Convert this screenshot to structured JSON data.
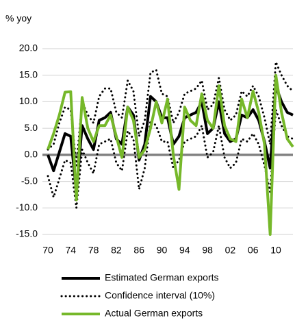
{
  "chart_data": {
    "type": "line",
    "y_label": "% yoy",
    "x": [
      1970,
      1971,
      1972,
      1973,
      1974,
      1975,
      1976,
      1977,
      1978,
      1979,
      1980,
      1981,
      1982,
      1983,
      1984,
      1985,
      1986,
      1987,
      1988,
      1989,
      1990,
      1991,
      1992,
      1993,
      1994,
      1995,
      1996,
      1997,
      1998,
      1999,
      2000,
      2001,
      2002,
      2003,
      2004,
      2005,
      2006,
      2007,
      2008,
      2009,
      2010,
      2011,
      2012,
      2013
    ],
    "xlim": [
      1970,
      2013
    ],
    "xticks": [
      {
        "value": 1970,
        "label": "70"
      },
      {
        "value": 1974,
        "label": "74"
      },
      {
        "value": 1978,
        "label": "78"
      },
      {
        "value": 1982,
        "label": "82"
      },
      {
        "value": 1986,
        "label": "86"
      },
      {
        "value": 1990,
        "label": "90"
      },
      {
        "value": 1994,
        "label": "94"
      },
      {
        "value": 1998,
        "label": "98"
      },
      {
        "value": 2002,
        "label": "02"
      },
      {
        "value": 2006,
        "label": "06"
      },
      {
        "value": 2010,
        "label": "10"
      }
    ],
    "ylim": [
      -15,
      20
    ],
    "yticks": [
      {
        "value": -15,
        "label": "-15.0"
      },
      {
        "value": -10,
        "label": "-10.0"
      },
      {
        "value": -5,
        "label": "-5.0"
      },
      {
        "value": 0,
        "label": "0.0"
      },
      {
        "value": 5,
        "label": "5.0"
      },
      {
        "value": 10,
        "label": "10.0"
      },
      {
        "value": 15,
        "label": "15.0"
      },
      {
        "value": 20,
        "label": "20.0"
      }
    ],
    "grid": true,
    "series": [
      {
        "name": "Estimated German exports",
        "color": "#000000",
        "style": "solid",
        "values": [
          0,
          -3,
          0.5,
          4,
          3.5,
          -7,
          5.5,
          3,
          1,
          6.5,
          7,
          8,
          3,
          2,
          9,
          7.5,
          -1,
          2,
          11,
          10,
          7,
          7,
          2,
          3.5,
          7,
          7.5,
          8,
          10,
          4,
          5,
          10,
          4,
          2.5,
          3,
          7.5,
          7,
          8.5,
          6.5,
          2.5,
          -2.5,
          13,
          10,
          8,
          7.5
        ]
      },
      {
        "name": "Confidence interval (10%)",
        "color": "#000000",
        "style": "dotted",
        "upper": [
          1,
          2,
          6,
          9,
          8.5,
          -2,
          10,
          7.5,
          6,
          11,
          12.5,
          12.5,
          8,
          7,
          14,
          12,
          3.5,
          6.5,
          15.5,
          16,
          11.5,
          11,
          6,
          8,
          11.5,
          12,
          12.5,
          14,
          8.5,
          9.5,
          14.5,
          8.5,
          6.5,
          7.5,
          12,
          11,
          13,
          11,
          7,
          2,
          17.5,
          15,
          13,
          12
        ],
        "lower": [
          -4,
          -8,
          -4.5,
          -1,
          -1.5,
          -10,
          1,
          -1.5,
          -3.5,
          2,
          2.5,
          3,
          -1.5,
          -3,
          4.5,
          3,
          -6.5,
          -2.5,
          6.5,
          5.5,
          2.5,
          2.5,
          -2.5,
          -1,
          2.5,
          3,
          3.5,
          5.5,
          -0.5,
          0.5,
          5.5,
          -0.5,
          -2.5,
          -1.5,
          3,
          2.5,
          4,
          2,
          -2,
          -7,
          8.5,
          5.5,
          3.5,
          3
        ]
      },
      {
        "name": "Actual German exports",
        "color": "#76b82a",
        "style": "solid",
        "values": [
          1,
          4,
          7.5,
          11.8,
          11.9,
          -8.5,
          10.8,
          5,
          2.5,
          5.5,
          5.5,
          7.5,
          3.5,
          -0.5,
          9,
          6.5,
          -0.5,
          1,
          5,
          10,
          6,
          10.5,
          0,
          -6.5,
          9,
          6.5,
          5.5,
          11.5,
          6.5,
          5,
          13,
          5.5,
          3,
          2.5,
          10.5,
          7,
          12,
          8,
          2,
          -15,
          15,
          8,
          3,
          1.5
        ]
      }
    ]
  }
}
